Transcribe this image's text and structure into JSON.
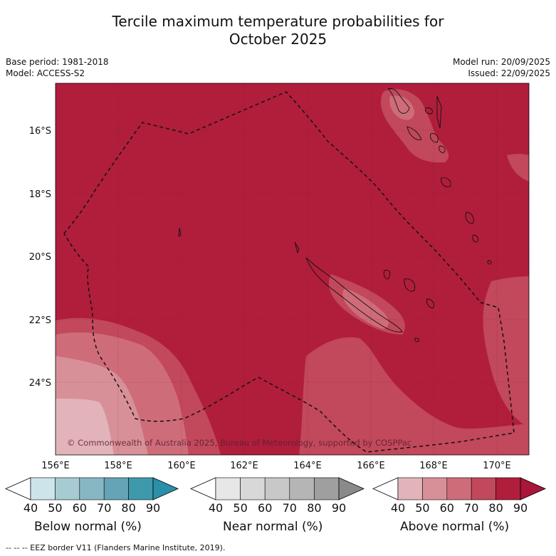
{
  "title_line1": "Tercile maximum temperature probabilities for",
  "title_line2": "October 2025",
  "meta_left": [
    "Base period: 1981-2018",
    "Model: ACCESS-S2"
  ],
  "meta_right": [
    "Model run: 20/09/2025",
    "Issued: 22/09/2025"
  ],
  "map": {
    "lon_labels": [
      "156°E",
      "158°E",
      "160°E",
      "162°E",
      "164°E",
      "166°E",
      "168°E",
      "170°E"
    ],
    "lat_labels": [
      "16°S",
      "18°S",
      "20°S",
      "22°S",
      "24°S"
    ],
    "copyright": "© Commonwealth of Australia 2025, Bureau of Meteorology, supported by COSPPac",
    "colors": {
      "above_90": "#b01e3c",
      "above_80": "#c2485c",
      "above_70": "#cf6c7a",
      "above_60": "#d89098",
      "above_50": "#e2b4ba"
    }
  },
  "colorbars": [
    {
      "label": "Below normal (%)",
      "ticks": [
        "40",
        "50",
        "60",
        "70",
        "80",
        "90"
      ],
      "colors": [
        "#ffffff",
        "#cde4ea",
        "#a7cbd2",
        "#88b7c4",
        "#64a4b6",
        "#3f99ad",
        "#2a8fa8"
      ]
    },
    {
      "label": "Near normal (%)",
      "ticks": [
        "40",
        "50",
        "60",
        "70",
        "80",
        "90"
      ],
      "colors": [
        "#ffffff",
        "#e7e7e7",
        "#d8d8d8",
        "#c8c8c8",
        "#b5b5b5",
        "#9f9f9f",
        "#8a8a8a"
      ]
    },
    {
      "label": "Above normal (%)",
      "ticks": [
        "40",
        "50",
        "60",
        "70",
        "80",
        "90"
      ],
      "colors": [
        "#ffffff",
        "#e2b4ba",
        "#d89098",
        "#cf6c7a",
        "#c2485c",
        "#b01e3c",
        "#a8163a"
      ]
    }
  ],
  "footnote": "--  --  -- EEZ border V11 (Flanders Marine Institute, 2019)."
}
